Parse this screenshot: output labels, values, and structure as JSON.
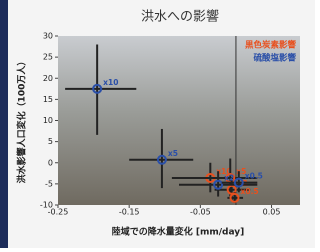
{
  "chart_data": {
    "type": "scatter",
    "title": "洪水への影響",
    "x_label": "陸域での降水量変化 [mm/day]",
    "y_label": "洪水影響人口変化（100万人）",
    "xlim": [
      -0.25,
      0.09
    ],
    "xticks": [
      -0.25,
      -0.15,
      -0.05,
      0.05
    ],
    "ylim": [
      -10,
      30
    ],
    "yticks": [
      -10,
      -5,
      0,
      5,
      10,
      15,
      20,
      25,
      30
    ],
    "legend": "top-right",
    "series": [
      {
        "name": "黒色炭素影響",
        "color": "#e8501e",
        "labels": [
          "x10",
          "x5",
          "x2",
          "x0.5"
        ],
        "x": [
          -0.036,
          -0.008,
          -0.006,
          -0.002
        ],
        "y": [
          -3.6,
          -3.6,
          -6.4,
          -8.3
        ],
        "x_lo": [
          -0.09,
          -0.05,
          -0.03,
          -0.012
        ],
        "x_hi": [
          0.02,
          0.03,
          0.02,
          0.01
        ],
        "y_lo": [
          -7,
          -8,
          -9,
          -9.5
        ],
        "y_hi": [
          0,
          1,
          -4,
          -7
        ]
      },
      {
        "name": "硫酸塩影響",
        "color": "#2a4fa8",
        "labels": [
          "x10",
          "x5",
          "x2",
          "x0.5"
        ],
        "x": [
          -0.195,
          -0.104,
          -0.025,
          0.004
        ],
        "y": [
          17.5,
          0.7,
          -5.2,
          -4.7
        ],
        "x_lo": [
          -0.24,
          -0.15,
          -0.08,
          -0.02
        ],
        "x_hi": [
          -0.14,
          -0.06,
          0.03,
          0.03
        ],
        "y_lo": [
          6.6,
          -6,
          -8,
          -7
        ],
        "y_hi": [
          28,
          8,
          -2,
          -2
        ]
      }
    ]
  }
}
